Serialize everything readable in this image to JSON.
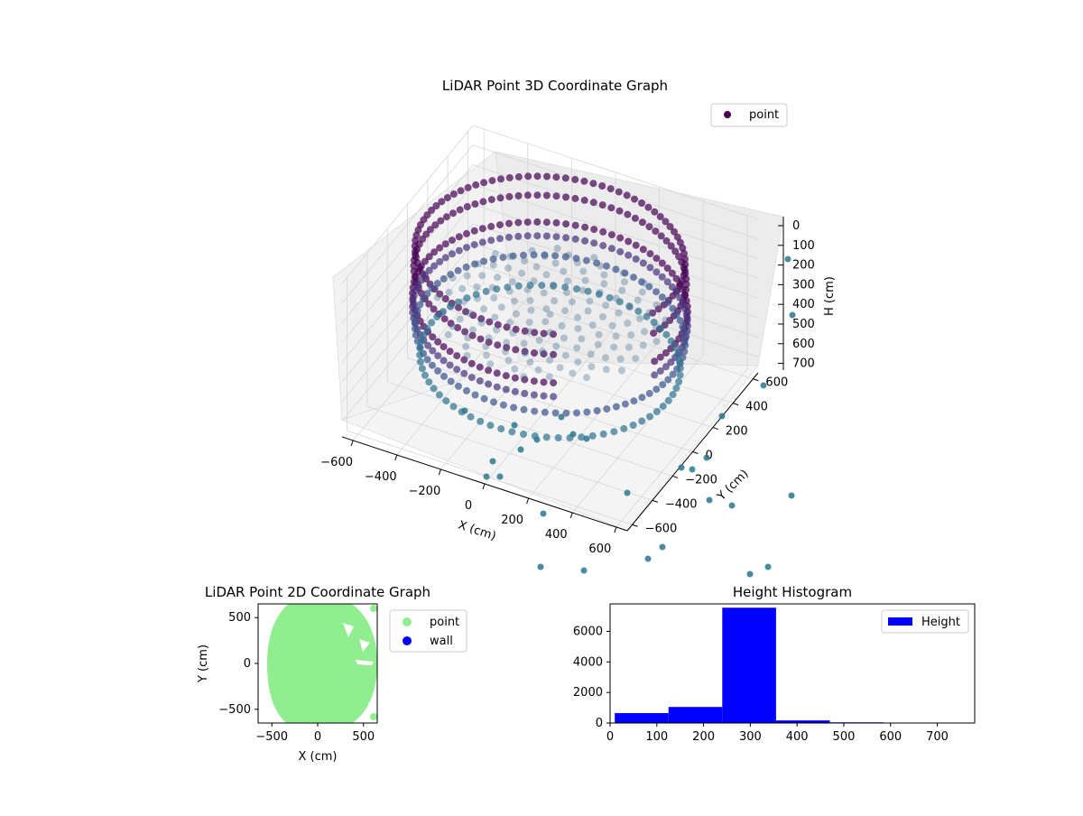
{
  "colors": {
    "point_3d_dark": "#440154",
    "point_3d_mid": "#3b528b",
    "point_3d_light": "#21918c",
    "point_2d": "#90ee90",
    "wall": "#0000ff",
    "histogram": "#0000ff"
  },
  "chart_data": [
    {
      "type": "scatter",
      "title": "LiDAR Point 3D Coordinate Graph",
      "xlabel": "X (cm)",
      "ylabel": "Y (cm)",
      "zlabel": "H (cm)",
      "x_ticks": [
        "−600",
        "−400",
        "−200",
        "0",
        "200",
        "400",
        "600"
      ],
      "y_ticks": [
        "−600",
        "−400",
        "−200",
        "0",
        "200",
        "400",
        "600"
      ],
      "z_ticks": [
        "0",
        "100",
        "200",
        "300",
        "400",
        "500",
        "600",
        "700"
      ],
      "xlim": [
        -650,
        650
      ],
      "ylim": [
        -650,
        650
      ],
      "zlim": [
        0,
        780
      ],
      "z_inverted": true,
      "legend": [
        "point"
      ],
      "legend_position": "top-right",
      "grid": true,
      "description_series": [
        {
          "name": "point",
          "shape": "ring",
          "radius_cm": 600,
          "h_range_cm": [
            0,
            700
          ]
        }
      ]
    },
    {
      "type": "scatter",
      "title": "LiDAR Point 2D Coordinate Graph",
      "xlabel": "X (cm)",
      "ylabel": "Y (cm)",
      "x_ticks": [
        "−500",
        "0",
        "500"
      ],
      "y_ticks": [
        "−500",
        "0",
        "500"
      ],
      "xlim": [
        -650,
        650
      ],
      "ylim": [
        -650,
        650
      ],
      "legend": [
        "point",
        "wall"
      ],
      "legend_position": "outside-right"
    },
    {
      "type": "bar",
      "title": "Height Histogram",
      "xlabel": "",
      "ylabel": "",
      "bins": [
        {
          "x0": 10,
          "x1": 125,
          "value": 650
        },
        {
          "x0": 125,
          "x1": 240,
          "value": 1050
        },
        {
          "x0": 240,
          "x1": 355,
          "value": 7550
        },
        {
          "x0": 355,
          "x1": 470,
          "value": 170
        },
        {
          "x0": 470,
          "x1": 585,
          "value": 45
        },
        {
          "x0": 585,
          "x1": 700,
          "value": 25
        },
        {
          "x0": 700,
          "x1": 815,
          "value": 15
        }
      ],
      "x_ticks": [
        "0",
        "100",
        "200",
        "300",
        "400",
        "500",
        "600",
        "700"
      ],
      "y_ticks": [
        "0",
        "2000",
        "4000",
        "6000"
      ],
      "xlim": [
        0,
        780
      ],
      "ylim": [
        0,
        7800
      ],
      "legend": [
        "Height"
      ],
      "legend_position": "top-right"
    }
  ]
}
